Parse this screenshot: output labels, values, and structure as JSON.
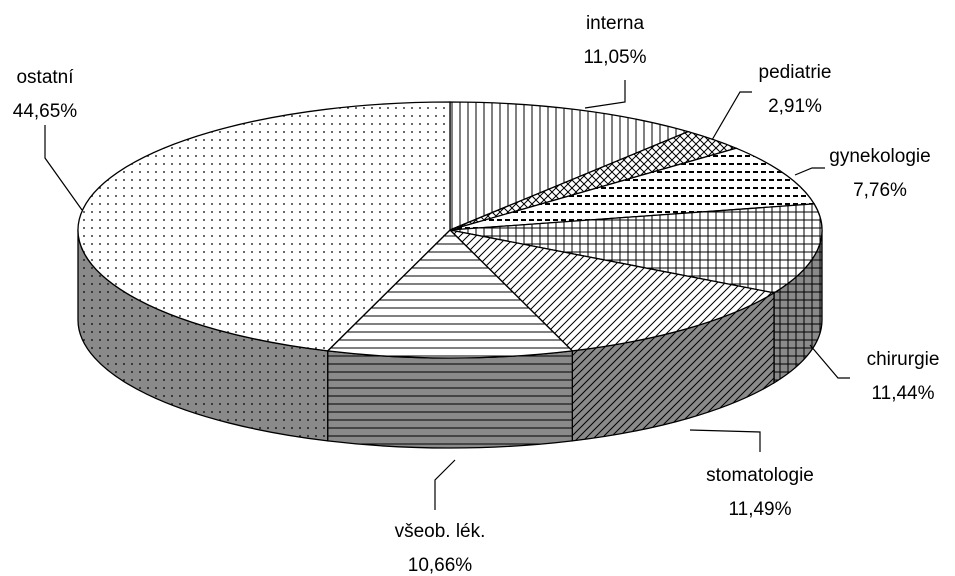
{
  "chart_data": {
    "type": "pie",
    "categories": [
      "interna",
      "pediatrie",
      "gynekologie",
      "chirurgie",
      "stomatologie",
      "všeob. lék.",
      "ostatní"
    ],
    "values": [
      11.05,
      2.91,
      7.76,
      11.44,
      11.49,
      10.66,
      44.65
    ],
    "value_labels": [
      "11,05%",
      "2,91%",
      "7,76%",
      "11,44%",
      "11,49%",
      "10,66%",
      "44,65%"
    ]
  }
}
